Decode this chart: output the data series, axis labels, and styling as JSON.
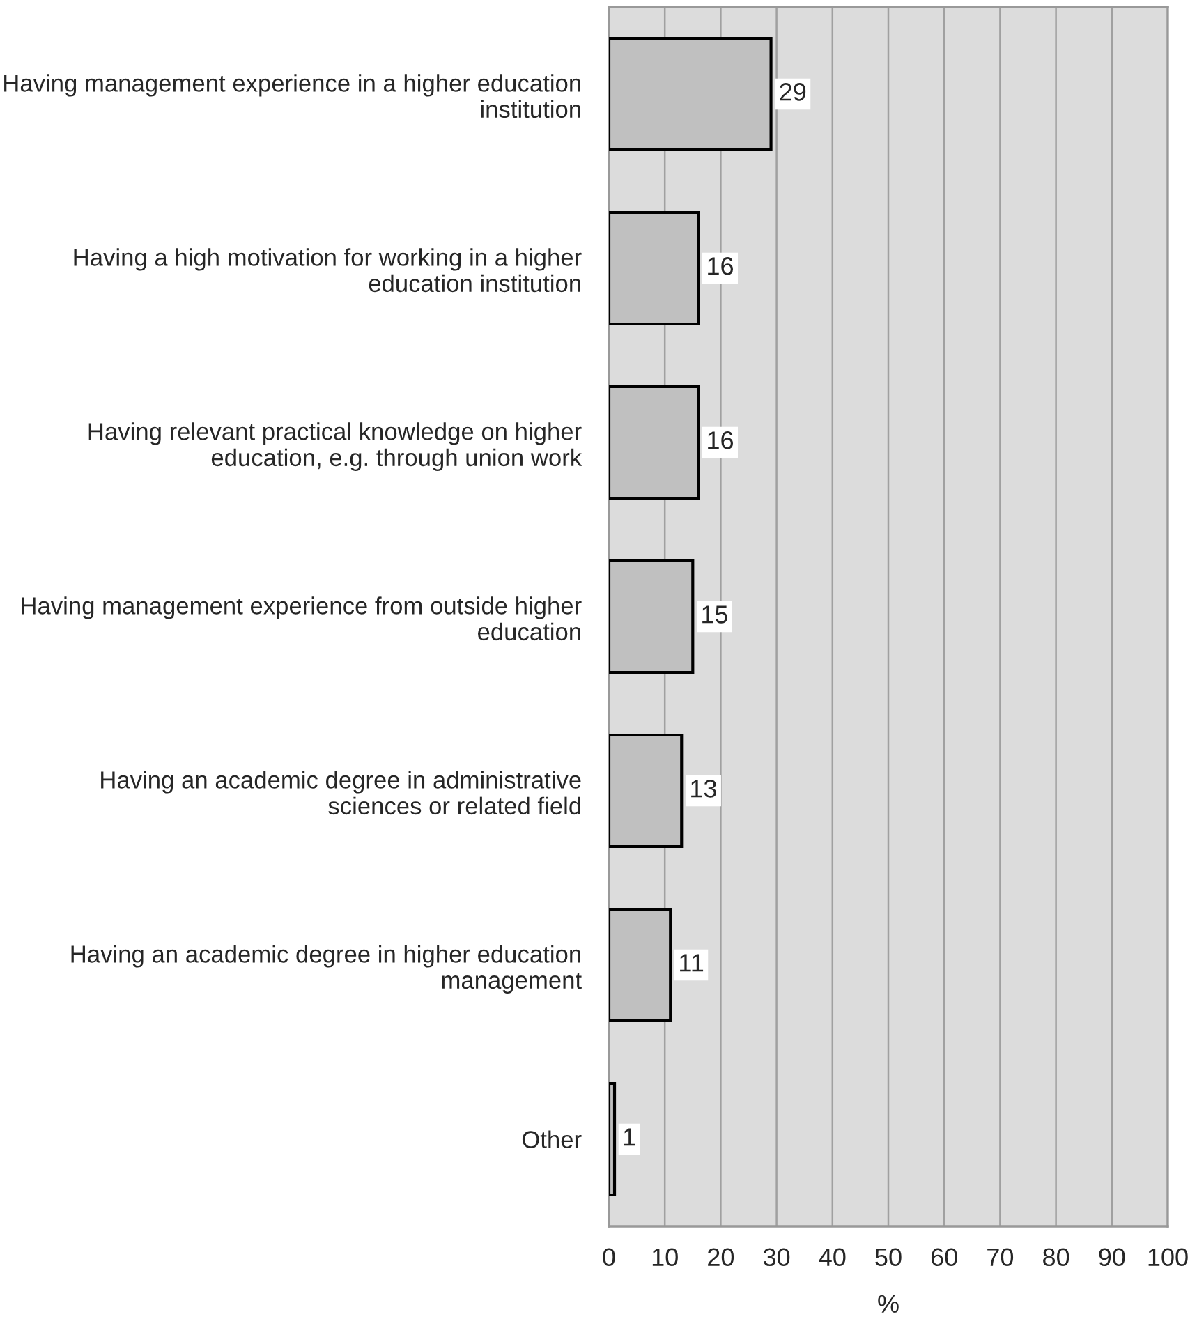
{
  "chart_data": {
    "type": "bar",
    "orientation": "horizontal",
    "xlabel": "%",
    "categories": [
      "Having management experience in a higher education institution",
      "Having a high motivation for working in a higher education institution",
      "Having relevant practical knowledge on higher education, e.g. through union work",
      "Having management experience from outside higher education",
      "Having an academic degree in administrative sciences or related field",
      "Having an academic degree in higher education management",
      "Other"
    ],
    "values": [
      29,
      16,
      16,
      15,
      13,
      11,
      1
    ],
    "color": "#c0c0c0",
    "xlim": [
      0,
      100
    ],
    "xticks": [
      0,
      10,
      20,
      30,
      40,
      50,
      60,
      70,
      80,
      90,
      100
    ],
    "grid": "x",
    "data_labels": true,
    "legend": false
  }
}
